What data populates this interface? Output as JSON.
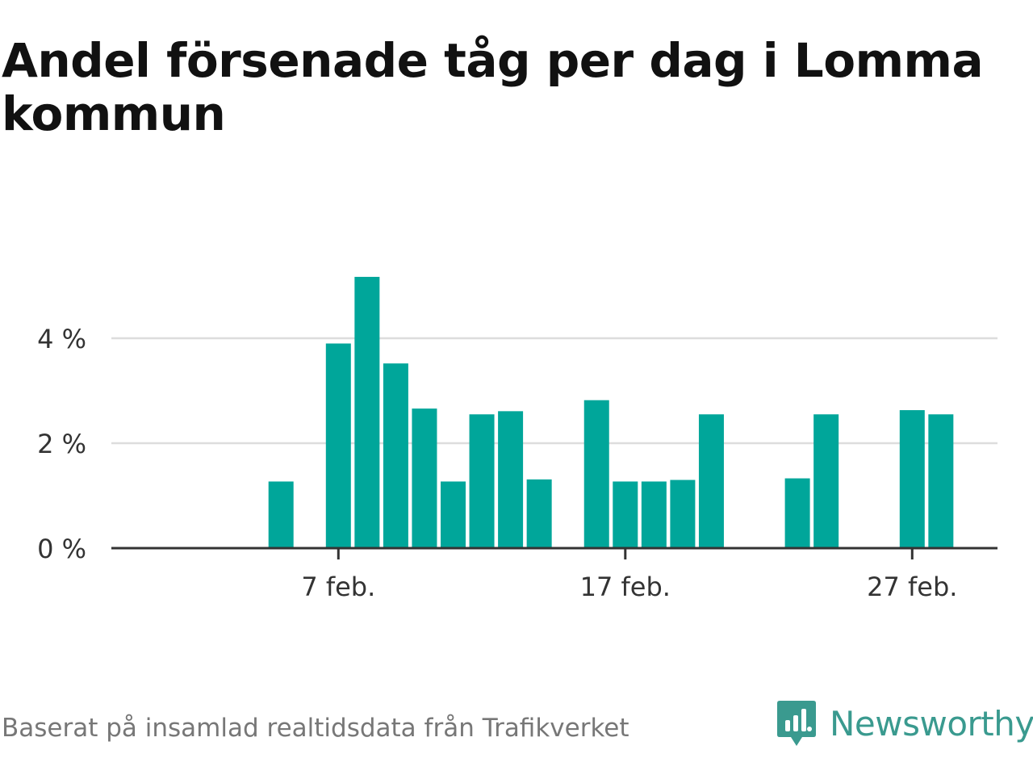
{
  "chart_data": {
    "type": "bar",
    "title": "Andel försenade tåg per dag i Lomma kommun",
    "x": [
      "2024-02-01",
      "2024-02-02",
      "2024-02-03",
      "2024-02-04",
      "2024-02-05",
      "2024-02-06",
      "2024-02-07",
      "2024-02-08",
      "2024-02-09",
      "2024-02-10",
      "2024-02-11",
      "2024-02-12",
      "2024-02-13",
      "2024-02-14",
      "2024-02-15",
      "2024-02-16",
      "2024-02-17",
      "2024-02-18",
      "2024-02-19",
      "2024-02-20",
      "2024-02-21",
      "2024-02-22",
      "2024-02-23",
      "2024-02-24",
      "2024-02-25",
      "2024-02-26",
      "2024-02-27",
      "2024-02-28",
      "2024-02-29"
    ],
    "values": [
      0,
      0,
      0,
      0,
      1.27,
      0,
      3.9,
      5.17,
      3.52,
      2.66,
      1.27,
      2.55,
      2.61,
      1.31,
      0,
      2.82,
      1.27,
      1.27,
      1.3,
      2.55,
      0,
      0,
      1.33,
      2.55,
      0,
      0,
      2.63,
      2.55,
      0
    ],
    "ylim": [
      0,
      5.5
    ],
    "yticks": [
      {
        "value": 0,
        "label": "0 %"
      },
      {
        "value": 2,
        "label": "2 %"
      },
      {
        "value": 4,
        "label": "4 %"
      }
    ],
    "xticks": [
      {
        "x": "2024-02-07",
        "label": "7 feb."
      },
      {
        "x": "2024-02-17",
        "label": "17 feb."
      },
      {
        "x": "2024-02-27",
        "label": "27 feb."
      }
    ],
    "xlabel": "",
    "ylabel": "",
    "grid": true,
    "bar_color": "#00a69a",
    "grid_color": "#dddddd",
    "axis_color": "#333333"
  },
  "footer": {
    "source": "Baserat på insamlad realtidsdata från Trafikverket",
    "brand": "Newsworthy",
    "brand_icon": "newsworthy-logo-icon",
    "brand_color": "#3a9a8f"
  }
}
